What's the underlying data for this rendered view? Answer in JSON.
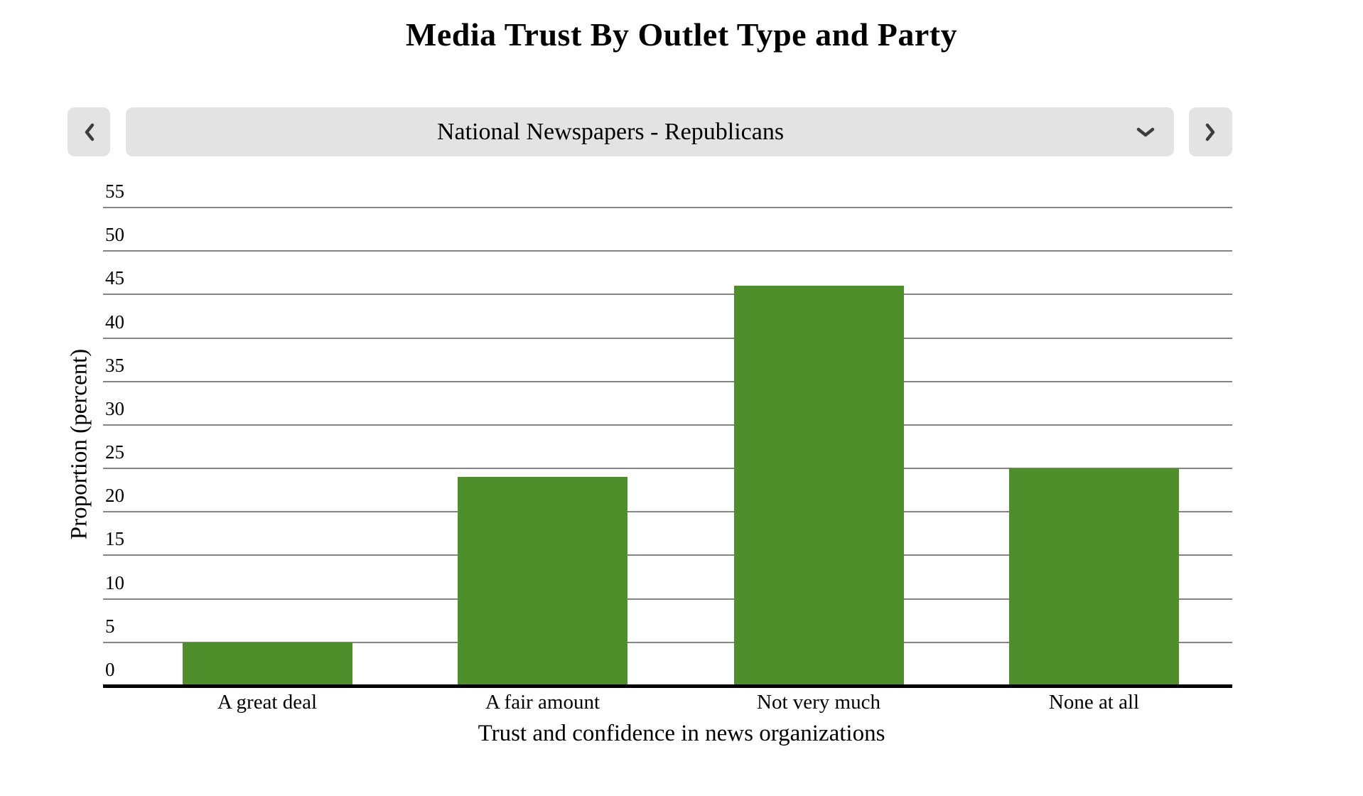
{
  "page": {
    "title": "Media Trust By Outlet Type and Party"
  },
  "selector": {
    "value": "National Newspapers - Republicans",
    "icons": {
      "prev": "chevron-left-icon",
      "expand": "chevron-down-icon",
      "next": "chevron-right-icon"
    }
  },
  "chart_data": {
    "type": "bar",
    "title": "Media Trust By Outlet Type and Party",
    "categories": [
      "A great deal",
      "A fair amount",
      "Not very much",
      "None at all"
    ],
    "values": [
      5,
      24,
      46,
      25
    ],
    "xlabel": "Trust and confidence in news organizations",
    "ylabel": "Proportion (percent)",
    "ylim": [
      0,
      57.5
    ],
    "yticks": [
      0,
      5,
      10,
      15,
      20,
      25,
      30,
      35,
      40,
      45,
      50,
      55
    ],
    "grid": true,
    "legend": "none",
    "bar_color": "#4e8e2b",
    "gridline_color": "#848484",
    "axis_color": "#000000",
    "control_bg_color": "#e3e3e3"
  }
}
